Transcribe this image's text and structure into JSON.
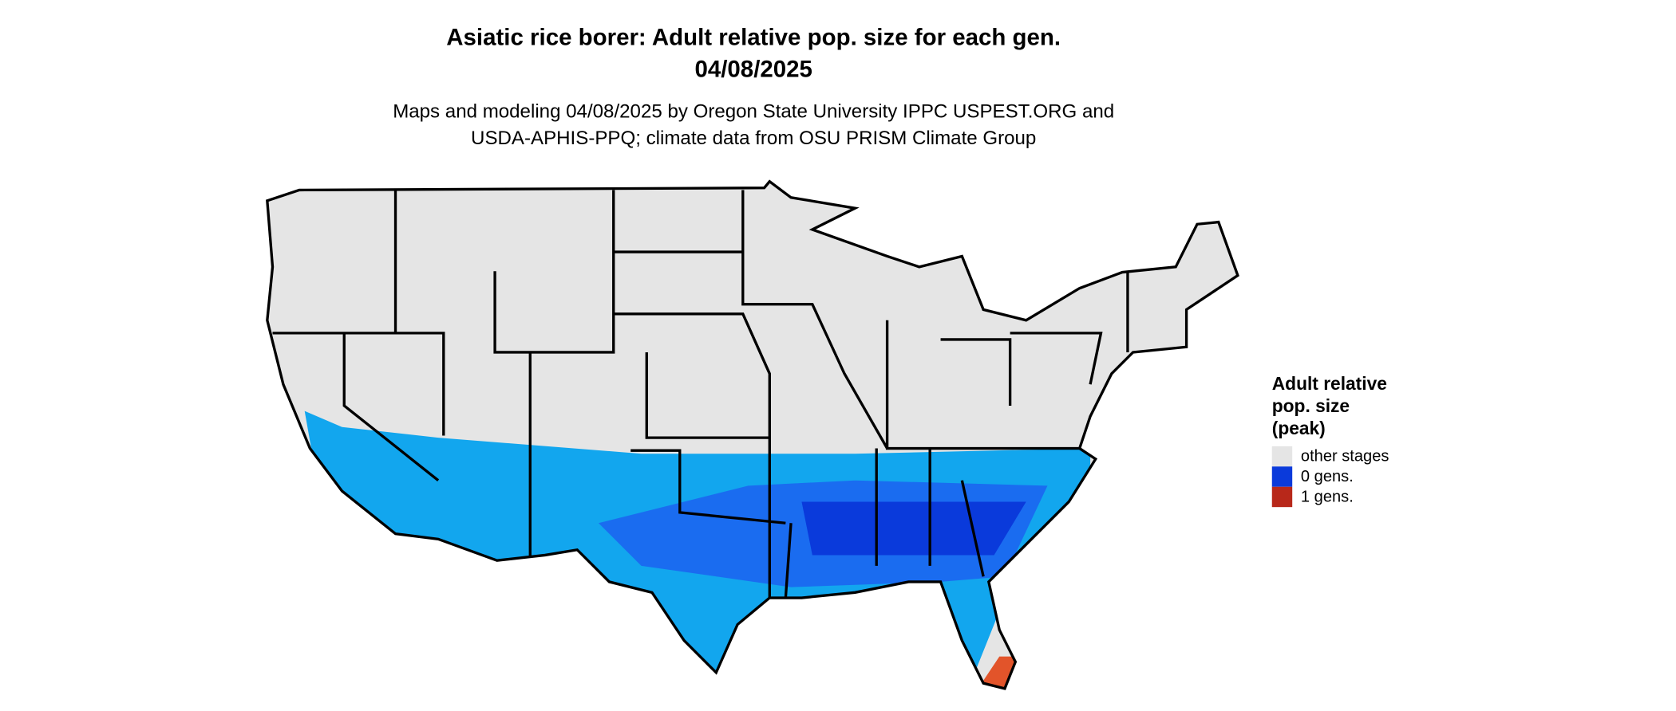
{
  "header": {
    "title": "Asiatic rice borer: Adult relative pop. size for each gen.",
    "date": "04/08/2025",
    "subtitle_lines": [
      "Maps and modeling 04/08/2025 by Oregon State University IPPC USPEST.ORG and",
      "USDA-APHIS-PPQ; climate data from OSU PRISM Climate Group"
    ]
  },
  "legend": {
    "title_lines": [
      "Adult relative",
      "pop. size",
      "(peak)"
    ],
    "items": [
      {
        "label": "other stages",
        "color": "#e5e5e5"
      },
      {
        "label": "0 gens.",
        "color": "#0a3adb"
      },
      {
        "label": "1 gens.",
        "color": "#b8281a"
      }
    ]
  }
}
